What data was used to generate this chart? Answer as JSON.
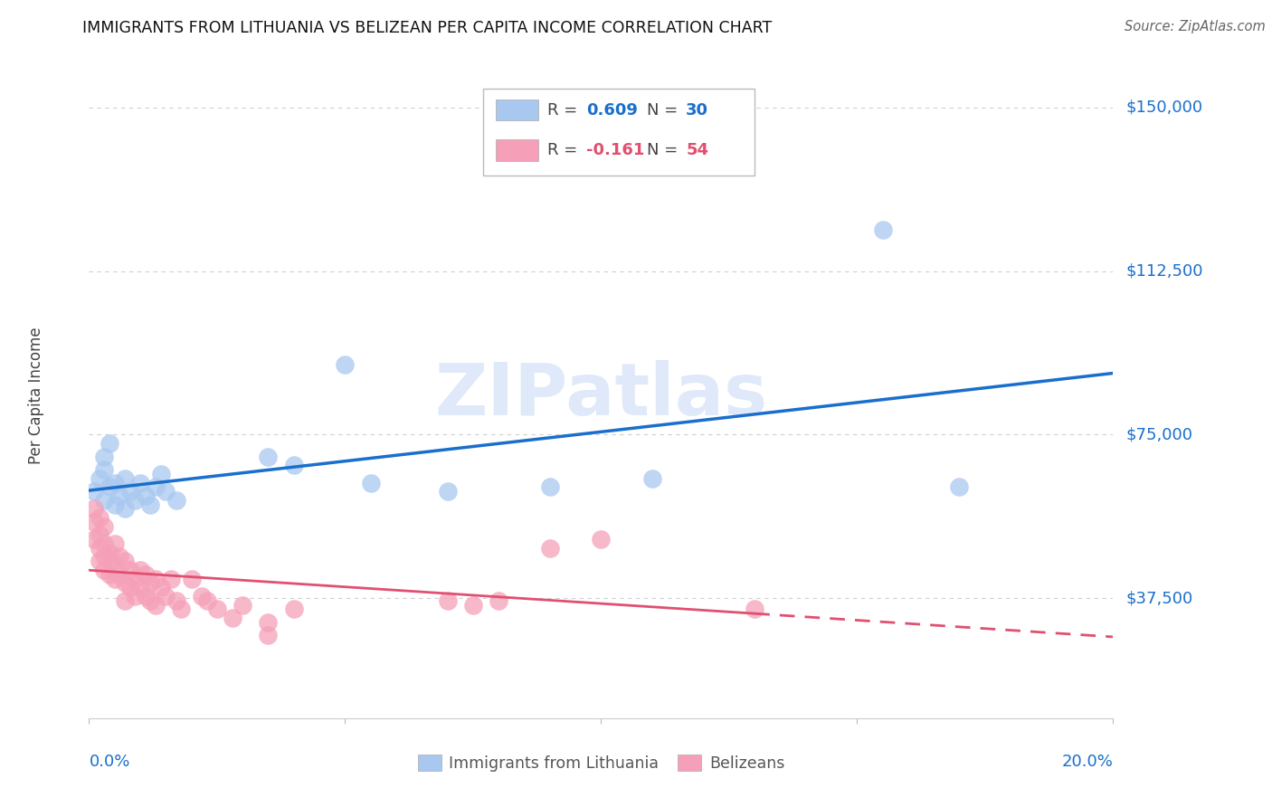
{
  "title": "IMMIGRANTS FROM LITHUANIA VS BELIZEAN PER CAPITA INCOME CORRELATION CHART",
  "source": "Source: ZipAtlas.com",
  "ylabel": "Per Capita Income",
  "ytick_labels": [
    "$37,500",
    "$75,000",
    "$112,500",
    "$150,000"
  ],
  "ytick_values": [
    37500,
    75000,
    112500,
    150000
  ],
  "ylim": [
    10000,
    158000
  ],
  "xlim": [
    0.0,
    0.2
  ],
  "blue_R": 0.609,
  "blue_N": 30,
  "pink_R": -0.161,
  "pink_N": 54,
  "blue_color": "#a8c8f0",
  "pink_color": "#f5a0b8",
  "blue_line_color": "#1a6fcc",
  "pink_line_color": "#e05070",
  "watermark": "ZIPatlas",
  "blue_scatter": [
    [
      0.001,
      62000
    ],
    [
      0.002,
      65000
    ],
    [
      0.003,
      67000
    ],
    [
      0.003,
      60000
    ],
    [
      0.004,
      63000
    ],
    [
      0.005,
      59000
    ],
    [
      0.005,
      64000
    ],
    [
      0.006,
      61000
    ],
    [
      0.007,
      58000
    ],
    [
      0.007,
      65000
    ],
    [
      0.008,
      62000
    ],
    [
      0.009,
      60000
    ],
    [
      0.01,
      64000
    ],
    [
      0.011,
      61000
    ],
    [
      0.012,
      59000
    ],
    [
      0.013,
      63000
    ],
    [
      0.014,
      66000
    ],
    [
      0.015,
      62000
    ],
    [
      0.017,
      60000
    ],
    [
      0.003,
      70000
    ],
    [
      0.004,
      73000
    ],
    [
      0.035,
      70000
    ],
    [
      0.04,
      68000
    ],
    [
      0.05,
      91000
    ],
    [
      0.055,
      64000
    ],
    [
      0.07,
      62000
    ],
    [
      0.09,
      63000
    ],
    [
      0.11,
      65000
    ],
    [
      0.155,
      122000
    ],
    [
      0.17,
      63000
    ]
  ],
  "pink_scatter": [
    [
      0.001,
      55000
    ],
    [
      0.001,
      51000
    ],
    [
      0.002,
      49000
    ],
    [
      0.002,
      46000
    ],
    [
      0.002,
      52000
    ],
    [
      0.003,
      47000
    ],
    [
      0.003,
      44000
    ],
    [
      0.003,
      50000
    ],
    [
      0.004,
      48000
    ],
    [
      0.004,
      43000
    ],
    [
      0.004,
      46000
    ],
    [
      0.005,
      50000
    ],
    [
      0.005,
      45000
    ],
    [
      0.005,
      42000
    ],
    [
      0.006,
      47000
    ],
    [
      0.006,
      43000
    ],
    [
      0.007,
      46000
    ],
    [
      0.007,
      41000
    ],
    [
      0.007,
      37000
    ],
    [
      0.008,
      44000
    ],
    [
      0.008,
      40000
    ],
    [
      0.009,
      42000
    ],
    [
      0.009,
      38000
    ],
    [
      0.01,
      44000
    ],
    [
      0.01,
      40000
    ],
    [
      0.011,
      43000
    ],
    [
      0.011,
      38000
    ],
    [
      0.012,
      41000
    ],
    [
      0.012,
      37000
    ],
    [
      0.013,
      42000
    ],
    [
      0.013,
      36000
    ],
    [
      0.014,
      40000
    ],
    [
      0.015,
      38000
    ],
    [
      0.016,
      42000
    ],
    [
      0.017,
      37000
    ],
    [
      0.018,
      35000
    ],
    [
      0.02,
      42000
    ],
    [
      0.022,
      38000
    ],
    [
      0.023,
      37000
    ],
    [
      0.025,
      35000
    ],
    [
      0.028,
      33000
    ],
    [
      0.03,
      36000
    ],
    [
      0.035,
      29000
    ],
    [
      0.035,
      32000
    ],
    [
      0.04,
      35000
    ],
    [
      0.07,
      37000
    ],
    [
      0.075,
      36000
    ],
    [
      0.08,
      37000
    ],
    [
      0.09,
      49000
    ],
    [
      0.1,
      51000
    ],
    [
      0.001,
      58000
    ],
    [
      0.002,
      56000
    ],
    [
      0.003,
      54000
    ],
    [
      0.13,
      35000
    ]
  ],
  "background_color": "#ffffff",
  "grid_color": "#d0d0d0"
}
